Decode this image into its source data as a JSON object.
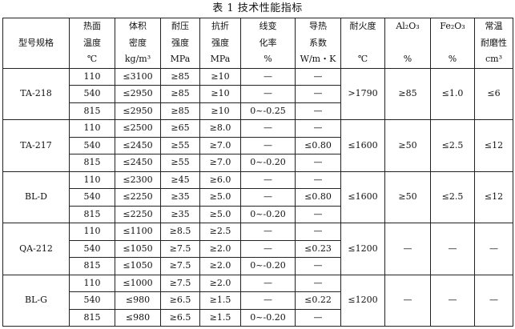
{
  "title": "表 1 技术性能指标",
  "headers": [
    {
      "lines": [
        "型号规格"
      ]
    },
    {
      "lines": [
        "热面",
        "温度",
        "℃"
      ]
    },
    {
      "lines": [
        "体积",
        "密度",
        "kg/m³"
      ]
    },
    {
      "lines": [
        "耐压",
        "强度",
        "MPa"
      ]
    },
    {
      "lines": [
        "抗折",
        "强度",
        "MPa"
      ]
    },
    {
      "lines": [
        "线变",
        "化率",
        "%"
      ]
    },
    {
      "lines": [
        "导热",
        "系数",
        "W/m・K"
      ]
    },
    {
      "lines": [
        "耐火度",
        "",
        "℃"
      ]
    },
    {
      "lines": [
        "Al₂O₃",
        "",
        "%"
      ]
    },
    {
      "lines": [
        "Fe₂O₃",
        "",
        "%"
      ]
    },
    {
      "lines": [
        "常温",
        "耐磨性",
        "cm³"
      ]
    }
  ],
  "groups": [
    {
      "model": "TA-218",
      "refractoriness": ">1790",
      "al2o3": "≥85",
      "fe2o3": "≤1.0",
      "abrasion": "≤6",
      "rows": [
        [
          "110",
          "≤3100",
          "≥85",
          "≥10",
          "—",
          "—"
        ],
        [
          "540",
          "≤2950",
          "≥85",
          "≥10",
          "—",
          "—"
        ],
        [
          "815",
          "≤2950",
          "≥85",
          "≥10",
          "0~-0.25",
          "—"
        ]
      ]
    },
    {
      "model": "TA-217",
      "refractoriness": "≤1600",
      "al2o3": "≥50",
      "fe2o3": "≤2.5",
      "abrasion": "≤12",
      "rows": [
        [
          "110",
          "≤2500",
          "≥65",
          "≥8.0",
          "—",
          "—"
        ],
        [
          "540",
          "≤2450",
          "≥55",
          "≥7.0",
          "—",
          "≤0.80"
        ],
        [
          "815",
          "≤2450",
          "≥55",
          "≥7.0",
          "0~-0.20",
          "—"
        ]
      ]
    },
    {
      "model": "BL-D",
      "refractoriness": "≤1600",
      "al2o3": "≥50",
      "fe2o3": "≤2.5",
      "abrasion": "≤12",
      "rows": [
        [
          "110",
          "≤2300",
          "≥45",
          "≥6.0",
          "—",
          "—"
        ],
        [
          "540",
          "≤2250",
          "≥35",
          "≥5.0",
          "—",
          "≤0.80"
        ],
        [
          "815",
          "≤2250",
          "≥35",
          "≥5.0",
          "0~-0.20",
          "—"
        ]
      ]
    },
    {
      "model": "QA-212",
      "refractoriness": "≤1200",
      "al2o3": "—",
      "fe2o3": "—",
      "abrasion": "—",
      "rows": [
        [
          "110",
          "≤1100",
          "≥8.5",
          "≥2.5",
          "—",
          "—"
        ],
        [
          "540",
          "≤1050",
          "≥7.5",
          "≥2.0",
          "—",
          "≤0.23"
        ],
        [
          "815",
          "≤1050",
          "≥7.5",
          "≥2.0",
          "0~-0.20",
          "—"
        ]
      ]
    },
    {
      "model": "BL-G",
      "refractoriness": "≤1200",
      "al2o3": "—",
      "fe2o3": "—",
      "abrasion": "—",
      "rows": [
        [
          "110",
          "≤1000",
          "≥7.5",
          "≥2.0",
          "—",
          "—"
        ],
        [
          "540",
          "≤980",
          "≥6.5",
          "≥1.5",
          "—",
          "≤0.22"
        ],
        [
          "815",
          "≤980",
          "≥6.5",
          "≥1.5",
          "0~-0.20",
          "—"
        ]
      ]
    }
  ]
}
